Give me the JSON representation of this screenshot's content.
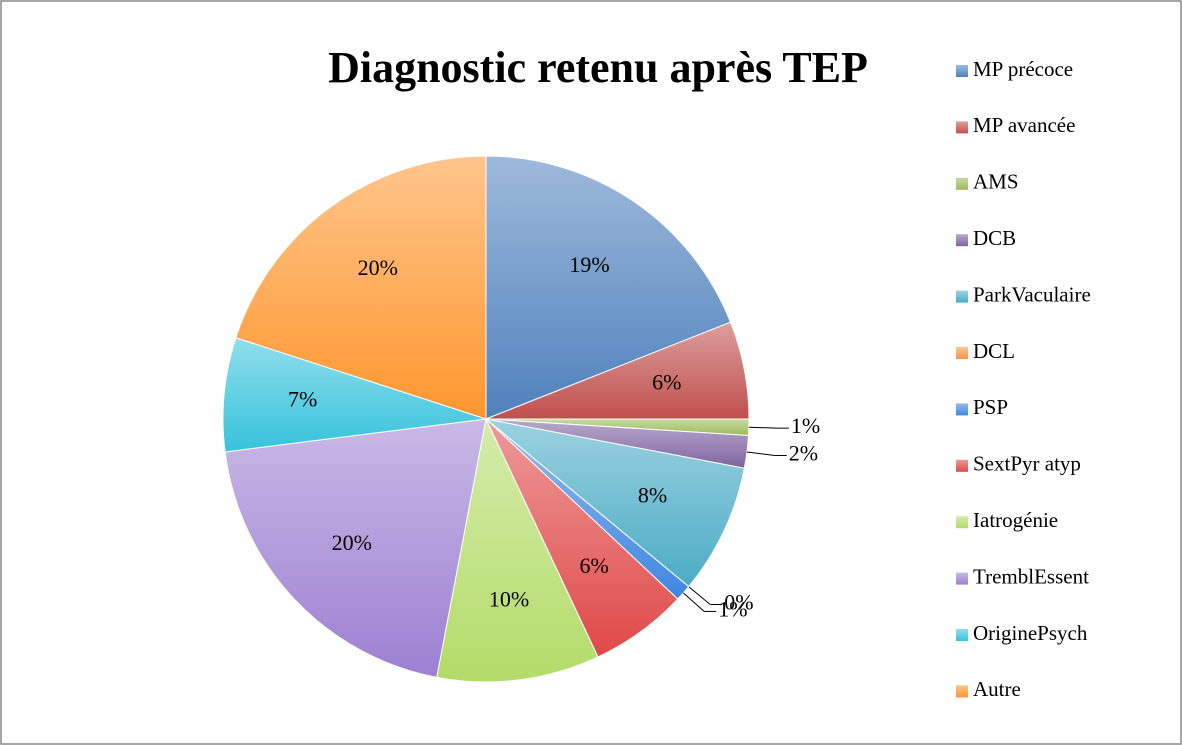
{
  "chart_data": {
    "type": "pie",
    "title": "Diagnostic retenu après TEP",
    "categories": [
      "MP précoce",
      "MP avancée",
      "AMS",
      "DCB",
      "ParkVaculaire",
      "DCL",
      "PSP",
      "SextPyr atyp",
      "Iatrogénie",
      "TremblEssent",
      "OriginePsych",
      "Autre"
    ],
    "values": [
      19,
      6,
      1,
      2,
      8,
      0,
      1,
      6,
      10,
      20,
      7,
      20
    ],
    "value_labels": [
      "19%",
      "6%",
      "1%",
      "2%",
      "8%",
      "0%",
      "1%",
      "6%",
      "10%",
      "20%",
      "7%",
      "20%"
    ],
    "colors": [
      "#4f81bd",
      "#c0504d",
      "#9bbb59",
      "#8064a2",
      "#4bacc6",
      "#f79646",
      "#3f86e0",
      "#e04848",
      "#b3dc68",
      "#9d80d2",
      "#36c3dc",
      "#ff962e"
    ],
    "legend": "right"
  }
}
